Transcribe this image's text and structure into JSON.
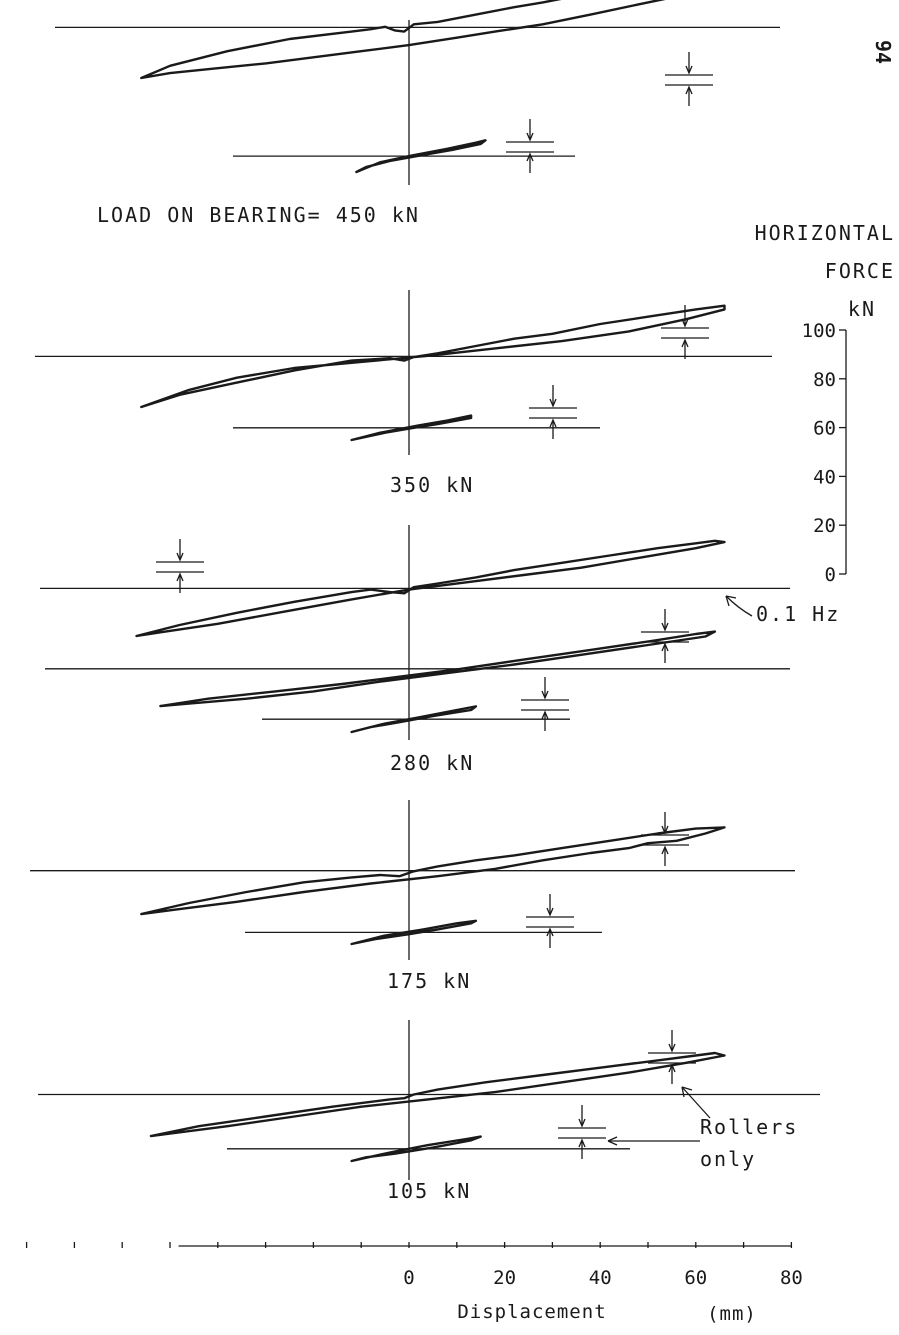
{
  "page_number": "94",
  "chart_data": {
    "type": "line",
    "force_axis": {
      "title_lines": [
        "HORIZONTAL",
        "FORCE",
        "kN"
      ],
      "ticks": [
        0,
        20,
        40,
        60,
        80,
        100
      ],
      "ylim": [
        0,
        100
      ]
    },
    "displacement_axis": {
      "title": "Displacement",
      "unit": "(mm)",
      "ticks": [
        0,
        20,
        40,
        60,
        80
      ],
      "xlim": [
        -57,
        80
      ]
    },
    "panels": [
      {
        "label": "LOAD ON BEARING= 450  kN",
        "loops": [
          {
            "name": "bearing",
            "xy": [
              [
                -56,
                0
              ],
              [
                -50,
                10
              ],
              [
                -38,
                22
              ],
              [
                -25,
                32
              ],
              [
                -12,
                38
              ],
              [
                -8,
                40
              ],
              [
                -5,
                42
              ],
              [
                -3,
                39
              ],
              [
                -1,
                38
              ],
              [
                1,
                44
              ],
              [
                6,
                46
              ],
              [
                14,
                52
              ],
              [
                22,
                58
              ],
              [
                28,
                62
              ],
              [
                36,
                68
              ],
              [
                46,
                74
              ],
              [
                56,
                80
              ],
              [
                62,
                83
              ],
              [
                65,
                82
              ],
              [
                60,
                70
              ],
              [
                50,
                62
              ],
              [
                38,
                52
              ],
              [
                28,
                44
              ],
              [
                18,
                38
              ],
              [
                10,
                33
              ],
              [
                0,
                27
              ],
              [
                -10,
                22
              ],
              [
                -20,
                17
              ],
              [
                -30,
                12
              ],
              [
                -40,
                8
              ],
              [
                -50,
                4
              ],
              [
                -56,
                0
              ]
            ]
          },
          {
            "name": "rollers",
            "xy": [
              [
                -11,
                0
              ],
              [
                -6,
                8
              ],
              [
                0,
                13
              ],
              [
                8,
                19
              ],
              [
                14,
                24
              ],
              [
                16,
                26
              ],
              [
                15,
                23
              ],
              [
                9,
                18
              ],
              [
                3,
                14
              ],
              [
                -4,
                9
              ],
              [
                -9,
                4
              ],
              [
                -11,
                0
              ]
            ]
          }
        ]
      },
      {
        "label": "350  kN",
        "loops": [
          {
            "name": "bearing",
            "xy": [
              [
                -56,
                0
              ],
              [
                -48,
                10
              ],
              [
                -36,
                20
              ],
              [
                -24,
                30
              ],
              [
                -12,
                38
              ],
              [
                -8,
                39
              ],
              [
                -4,
                40
              ],
              [
                -1,
                38
              ],
              [
                1,
                41
              ],
              [
                6,
                44
              ],
              [
                14,
                50
              ],
              [
                22,
                56
              ],
              [
                30,
                60
              ],
              [
                40,
                68
              ],
              [
                50,
                74
              ],
              [
                60,
                80
              ],
              [
                66,
                83
              ],
              [
                66,
                80
              ],
              [
                58,
                72
              ],
              [
                46,
                62
              ],
              [
                32,
                54
              ],
              [
                18,
                48
              ],
              [
                4,
                42
              ],
              [
                -10,
                37
              ],
              [
                -24,
                32
              ],
              [
                -36,
                24
              ],
              [
                -46,
                14
              ],
              [
                -56,
                0
              ]
            ]
          },
          {
            "name": "rollers",
            "xy": [
              [
                -12,
                0
              ],
              [
                -6,
                6
              ],
              [
                2,
                12
              ],
              [
                8,
                16
              ],
              [
                13,
                20
              ],
              [
                13,
                18
              ],
              [
                6,
                13
              ],
              [
                1,
                10
              ],
              [
                -5,
                6
              ],
              [
                -12,
                0
              ]
            ]
          }
        ]
      },
      {
        "label": "280  kN",
        "loops": [
          {
            "name": "bearing",
            "xy": [
              [
                -57,
                0
              ],
              [
                -48,
                9
              ],
              [
                -36,
                19
              ],
              [
                -24,
                28
              ],
              [
                -12,
                36
              ],
              [
                -8,
                38
              ],
              [
                -4,
                36
              ],
              [
                -1,
                35
              ],
              [
                1,
                40
              ],
              [
                6,
                43
              ],
              [
                14,
                48
              ],
              [
                22,
                54
              ],
              [
                32,
                60
              ],
              [
                42,
                66
              ],
              [
                52,
                72
              ],
              [
                60,
                76
              ],
              [
                64,
                78
              ],
              [
                66,
                77
              ],
              [
                60,
                72
              ],
              [
                48,
                64
              ],
              [
                36,
                56
              ],
              [
                24,
                50
              ],
              [
                12,
                44
              ],
              [
                0,
                38
              ],
              [
                -12,
                30
              ],
              [
                -26,
                20
              ],
              [
                -40,
                10
              ],
              [
                -52,
                3
              ],
              [
                -57,
                0
              ]
            ]
          },
          {
            "name": "bearing 0.1 Hz",
            "xy": [
              [
                -52,
                0
              ],
              [
                -42,
                6
              ],
              [
                -28,
                12
              ],
              [
                -14,
                18
              ],
              [
                -2,
                24
              ],
              [
                10,
                30
              ],
              [
                24,
                38
              ],
              [
                38,
                46
              ],
              [
                52,
                54
              ],
              [
                60,
                59
              ],
              [
                64,
                61
              ],
              [
                62,
                57
              ],
              [
                50,
                50
              ],
              [
                36,
                42
              ],
              [
                22,
                34
              ],
              [
                8,
                27
              ],
              [
                -6,
                20
              ],
              [
                -20,
                12
              ],
              [
                -34,
                6
              ],
              [
                -46,
                2
              ],
              [
                -52,
                0
              ]
            ]
          },
          {
            "name": "rollers",
            "xy": [
              [
                -12,
                0
              ],
              [
                -5,
                7
              ],
              [
                2,
                12
              ],
              [
                10,
                18
              ],
              [
                14,
                21
              ],
              [
                13,
                18
              ],
              [
                5,
                13
              ],
              [
                -2,
                8
              ],
              [
                -8,
                4
              ],
              [
                -12,
                0
              ]
            ]
          }
        ]
      },
      {
        "label": "175  kN",
        "loops": [
          {
            "name": "bearing",
            "xy": [
              [
                -56,
                0
              ],
              [
                -46,
                9
              ],
              [
                -34,
                18
              ],
              [
                -22,
                26
              ],
              [
                -12,
                30
              ],
              [
                -6,
                32
              ],
              [
                -2,
                31
              ],
              [
                1,
                35
              ],
              [
                6,
                39
              ],
              [
                14,
                44
              ],
              [
                22,
                48
              ],
              [
                32,
                54
              ],
              [
                42,
                60
              ],
              [
                52,
                66
              ],
              [
                60,
                70
              ],
              [
                66,
                71
              ],
              [
                62,
                66
              ],
              [
                56,
                60
              ],
              [
                50,
                58
              ],
              [
                46,
                54
              ],
              [
                38,
                50
              ],
              [
                28,
                44
              ],
              [
                18,
                37
              ],
              [
                6,
                31
              ],
              [
                -8,
                25
              ],
              [
                -22,
                18
              ],
              [
                -36,
                10
              ],
              [
                -48,
                4
              ],
              [
                -56,
                0
              ]
            ]
          },
          {
            "name": "rollers",
            "xy": [
              [
                -12,
                0
              ],
              [
                -5,
                7
              ],
              [
                3,
                12
              ],
              [
                10,
                17
              ],
              [
                14,
                19
              ],
              [
                13,
                17
              ],
              [
                6,
                12
              ],
              [
                0,
                8
              ],
              [
                -7,
                4
              ],
              [
                -12,
                0
              ]
            ]
          }
        ]
      },
      {
        "label": "105  kN",
        "loops": [
          {
            "name": "bearing",
            "xy": [
              [
                -54,
                0
              ],
              [
                -44,
                8
              ],
              [
                -30,
                16
              ],
              [
                -16,
                24
              ],
              [
                -4,
                30
              ],
              [
                -1,
                31
              ],
              [
                1,
                34
              ],
              [
                6,
                38
              ],
              [
                16,
                44
              ],
              [
                28,
                50
              ],
              [
                40,
                56
              ],
              [
                52,
                62
              ],
              [
                60,
                66
              ],
              [
                64,
                68
              ],
              [
                66,
                66
              ],
              [
                58,
                60
              ],
              [
                46,
                52
              ],
              [
                32,
                44
              ],
              [
                18,
                36
              ],
              [
                4,
                30
              ],
              [
                -10,
                24
              ],
              [
                -24,
                16
              ],
              [
                -38,
                8
              ],
              [
                -50,
                2
              ],
              [
                -54,
                0
              ]
            ]
          },
          {
            "name": "rollers",
            "xy": [
              [
                -12,
                0
              ],
              [
                -4,
                7
              ],
              [
                4,
                13
              ],
              [
                12,
                18
              ],
              [
                15,
                20
              ],
              [
                13,
                17
              ],
              [
                5,
                11
              ],
              [
                -3,
                6
              ],
              [
                -9,
                3
              ],
              [
                -12,
                0
              ]
            ]
          }
        ]
      }
    ],
    "annotations": [
      "0.1 Hz",
      "Rollers",
      "only"
    ]
  }
}
